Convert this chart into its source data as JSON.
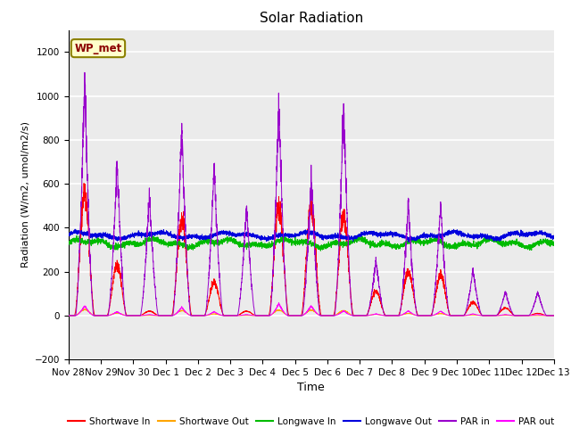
{
  "title": "Solar Radiation",
  "xlabel": "Time",
  "ylabel": "Radiation (W/m2, umol/m2/s)",
  "ylim": [
    -200,
    1300
  ],
  "yticks": [
    -200,
    0,
    200,
    400,
    600,
    800,
    1000,
    1200
  ],
  "date_labels": [
    "Nov 28",
    "Nov 29",
    "Nov 30",
    "Dec 1",
    "Dec 2",
    "Dec 3",
    "Dec 4",
    "Dec 5",
    "Dec 6",
    "Dec 7",
    "Dec 8",
    "Dec 9",
    "Dec 10",
    "Dec 11",
    "Dec 12",
    "Dec 13"
  ],
  "annotation_text": "WP_met",
  "annotation_color": "#8B0000",
  "annotation_bg": "#FFFFCC",
  "annotation_edge": "#8B8000",
  "line_colors": {
    "shortwave_in": "#FF0000",
    "shortwave_out": "#FFA500",
    "longwave_in": "#00BB00",
    "longwave_out": "#0000DD",
    "par_in": "#9900CC",
    "par_out": "#FF00FF"
  },
  "legend_labels": [
    "Shortwave In",
    "Shortwave Out",
    "Longwave In",
    "Longwave Out",
    "PAR in",
    "PAR out"
  ],
  "plot_bg": "#EBEBEB",
  "grid_color": "#FFFFFF",
  "num_days": 15,
  "points_per_day": 288,
  "sw_peaks": [
    550,
    230,
    20,
    440,
    150,
    20,
    490,
    490,
    445,
    110,
    200,
    180,
    60,
    35,
    10
  ],
  "par_peaks": [
    1070,
    700,
    550,
    870,
    680,
    490,
    965,
    635,
    955,
    260,
    510,
    510,
    210,
    110,
    110
  ],
  "par_out_peaks": [
    45,
    18,
    5,
    38,
    18,
    5,
    55,
    45,
    22,
    8,
    22,
    20,
    8,
    5,
    5
  ],
  "lw_in_base": 330,
  "lw_out_base": 365,
  "figsize": [
    6.4,
    4.8
  ],
  "dpi": 100
}
